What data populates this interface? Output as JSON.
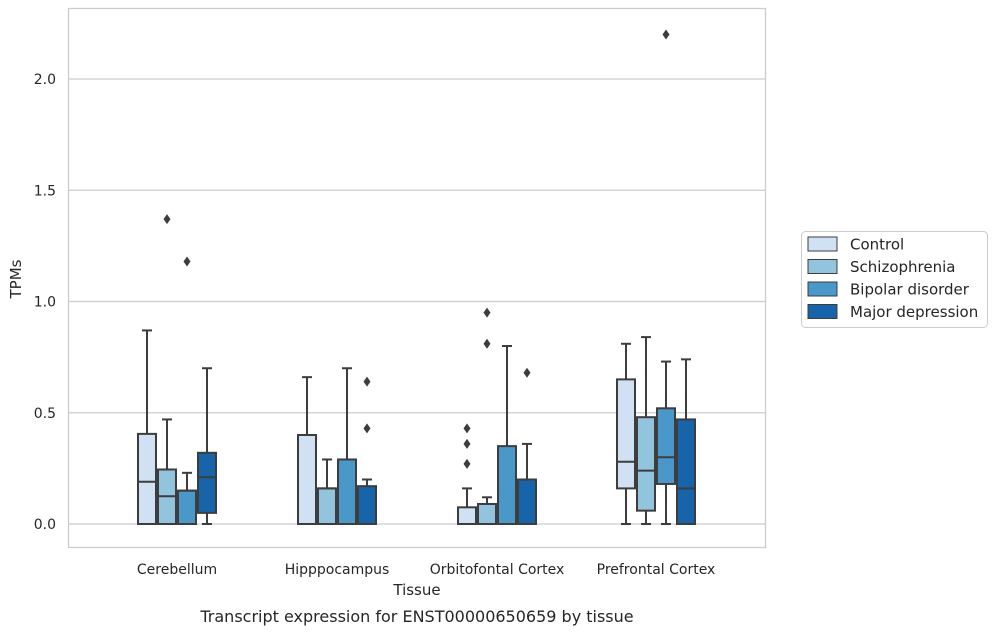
{
  "caption": "Transcript expression for ENST00000650659 by tissue",
  "chart_data": {
    "type": "boxplot",
    "xlabel": "Tissue",
    "ylabel": "TPMs",
    "ylim": [
      -0.11,
      2.32
    ],
    "yticks": [
      0.0,
      0.5,
      1.0,
      1.5,
      2.0
    ],
    "ytick_labels": [
      "0.0",
      "0.5",
      "1.0",
      "1.5",
      "2.0"
    ],
    "grid": "horizontal",
    "legend_position": "right",
    "categories": [
      "Cerebellum",
      "Hipppocampus",
      "Orbitofontal Cortex",
      "Prefrontal Cortex"
    ],
    "series": [
      {
        "name": "Control",
        "color": "#cfe1f2",
        "boxes": [
          {
            "whislo": 0.0,
            "q1": 0.0,
            "med": 0.19,
            "q3": 0.405,
            "whishi": 0.87,
            "fliers": []
          },
          {
            "whislo": 0.0,
            "q1": 0.0,
            "med": 0.0,
            "q3": 0.4,
            "whishi": 0.66,
            "fliers": []
          },
          {
            "whislo": 0.0,
            "q1": 0.0,
            "med": 0.0,
            "q3": 0.075,
            "whishi": 0.16,
            "fliers": [
              0.27,
              0.36,
              0.43
            ]
          },
          {
            "whislo": 0.0,
            "q1": 0.16,
            "med": 0.28,
            "q3": 0.65,
            "whishi": 0.81,
            "fliers": []
          }
        ]
      },
      {
        "name": "Schizophrenia",
        "color": "#93c4de",
        "boxes": [
          {
            "whislo": 0.0,
            "q1": 0.0,
            "med": 0.125,
            "q3": 0.245,
            "whishi": 0.47,
            "fliers": [
              1.37
            ]
          },
          {
            "whislo": 0.0,
            "q1": 0.0,
            "med": 0.16,
            "q3": 0.16,
            "whishi": 0.29,
            "fliers": []
          },
          {
            "whislo": 0.0,
            "q1": 0.0,
            "med": 0.0,
            "q3": 0.09,
            "whishi": 0.12,
            "fliers": [
              0.81,
              0.95
            ]
          },
          {
            "whislo": 0.0,
            "q1": 0.06,
            "med": 0.24,
            "q3": 0.48,
            "whishi": 0.84,
            "fliers": []
          }
        ]
      },
      {
        "name": "Bipolar disorder",
        "color": "#4a98c9",
        "boxes": [
          {
            "whislo": 0.0,
            "q1": 0.0,
            "med": 0.15,
            "q3": 0.15,
            "whishi": 0.23,
            "fliers": [
              1.18
            ]
          },
          {
            "whislo": 0.0,
            "q1": 0.0,
            "med": 0.0,
            "q3": 0.29,
            "whishi": 0.7,
            "fliers": []
          },
          {
            "whislo": 0.0,
            "q1": 0.0,
            "med": 0.0,
            "q3": 0.35,
            "whishi": 0.8,
            "fliers": []
          },
          {
            "whislo": 0.0,
            "q1": 0.18,
            "med": 0.3,
            "q3": 0.52,
            "whishi": 0.73,
            "fliers": [
              2.2
            ]
          }
        ]
      },
      {
        "name": "Major depression",
        "color": "#1764ab",
        "boxes": [
          {
            "whislo": 0.0,
            "q1": 0.05,
            "med": 0.21,
            "q3": 0.32,
            "whishi": 0.7,
            "fliers": []
          },
          {
            "whislo": 0.0,
            "q1": 0.0,
            "med": 0.0,
            "q3": 0.17,
            "whishi": 0.2,
            "fliers": [
              0.43,
              0.64
            ]
          },
          {
            "whislo": 0.0,
            "q1": 0.0,
            "med": 0.0,
            "q3": 0.2,
            "whishi": 0.36,
            "fliers": [
              0.68
            ]
          },
          {
            "whislo": 0.0,
            "q1": 0.0,
            "med": 0.16,
            "q3": 0.47,
            "whishi": 0.74,
            "fliers": []
          }
        ]
      }
    ]
  }
}
